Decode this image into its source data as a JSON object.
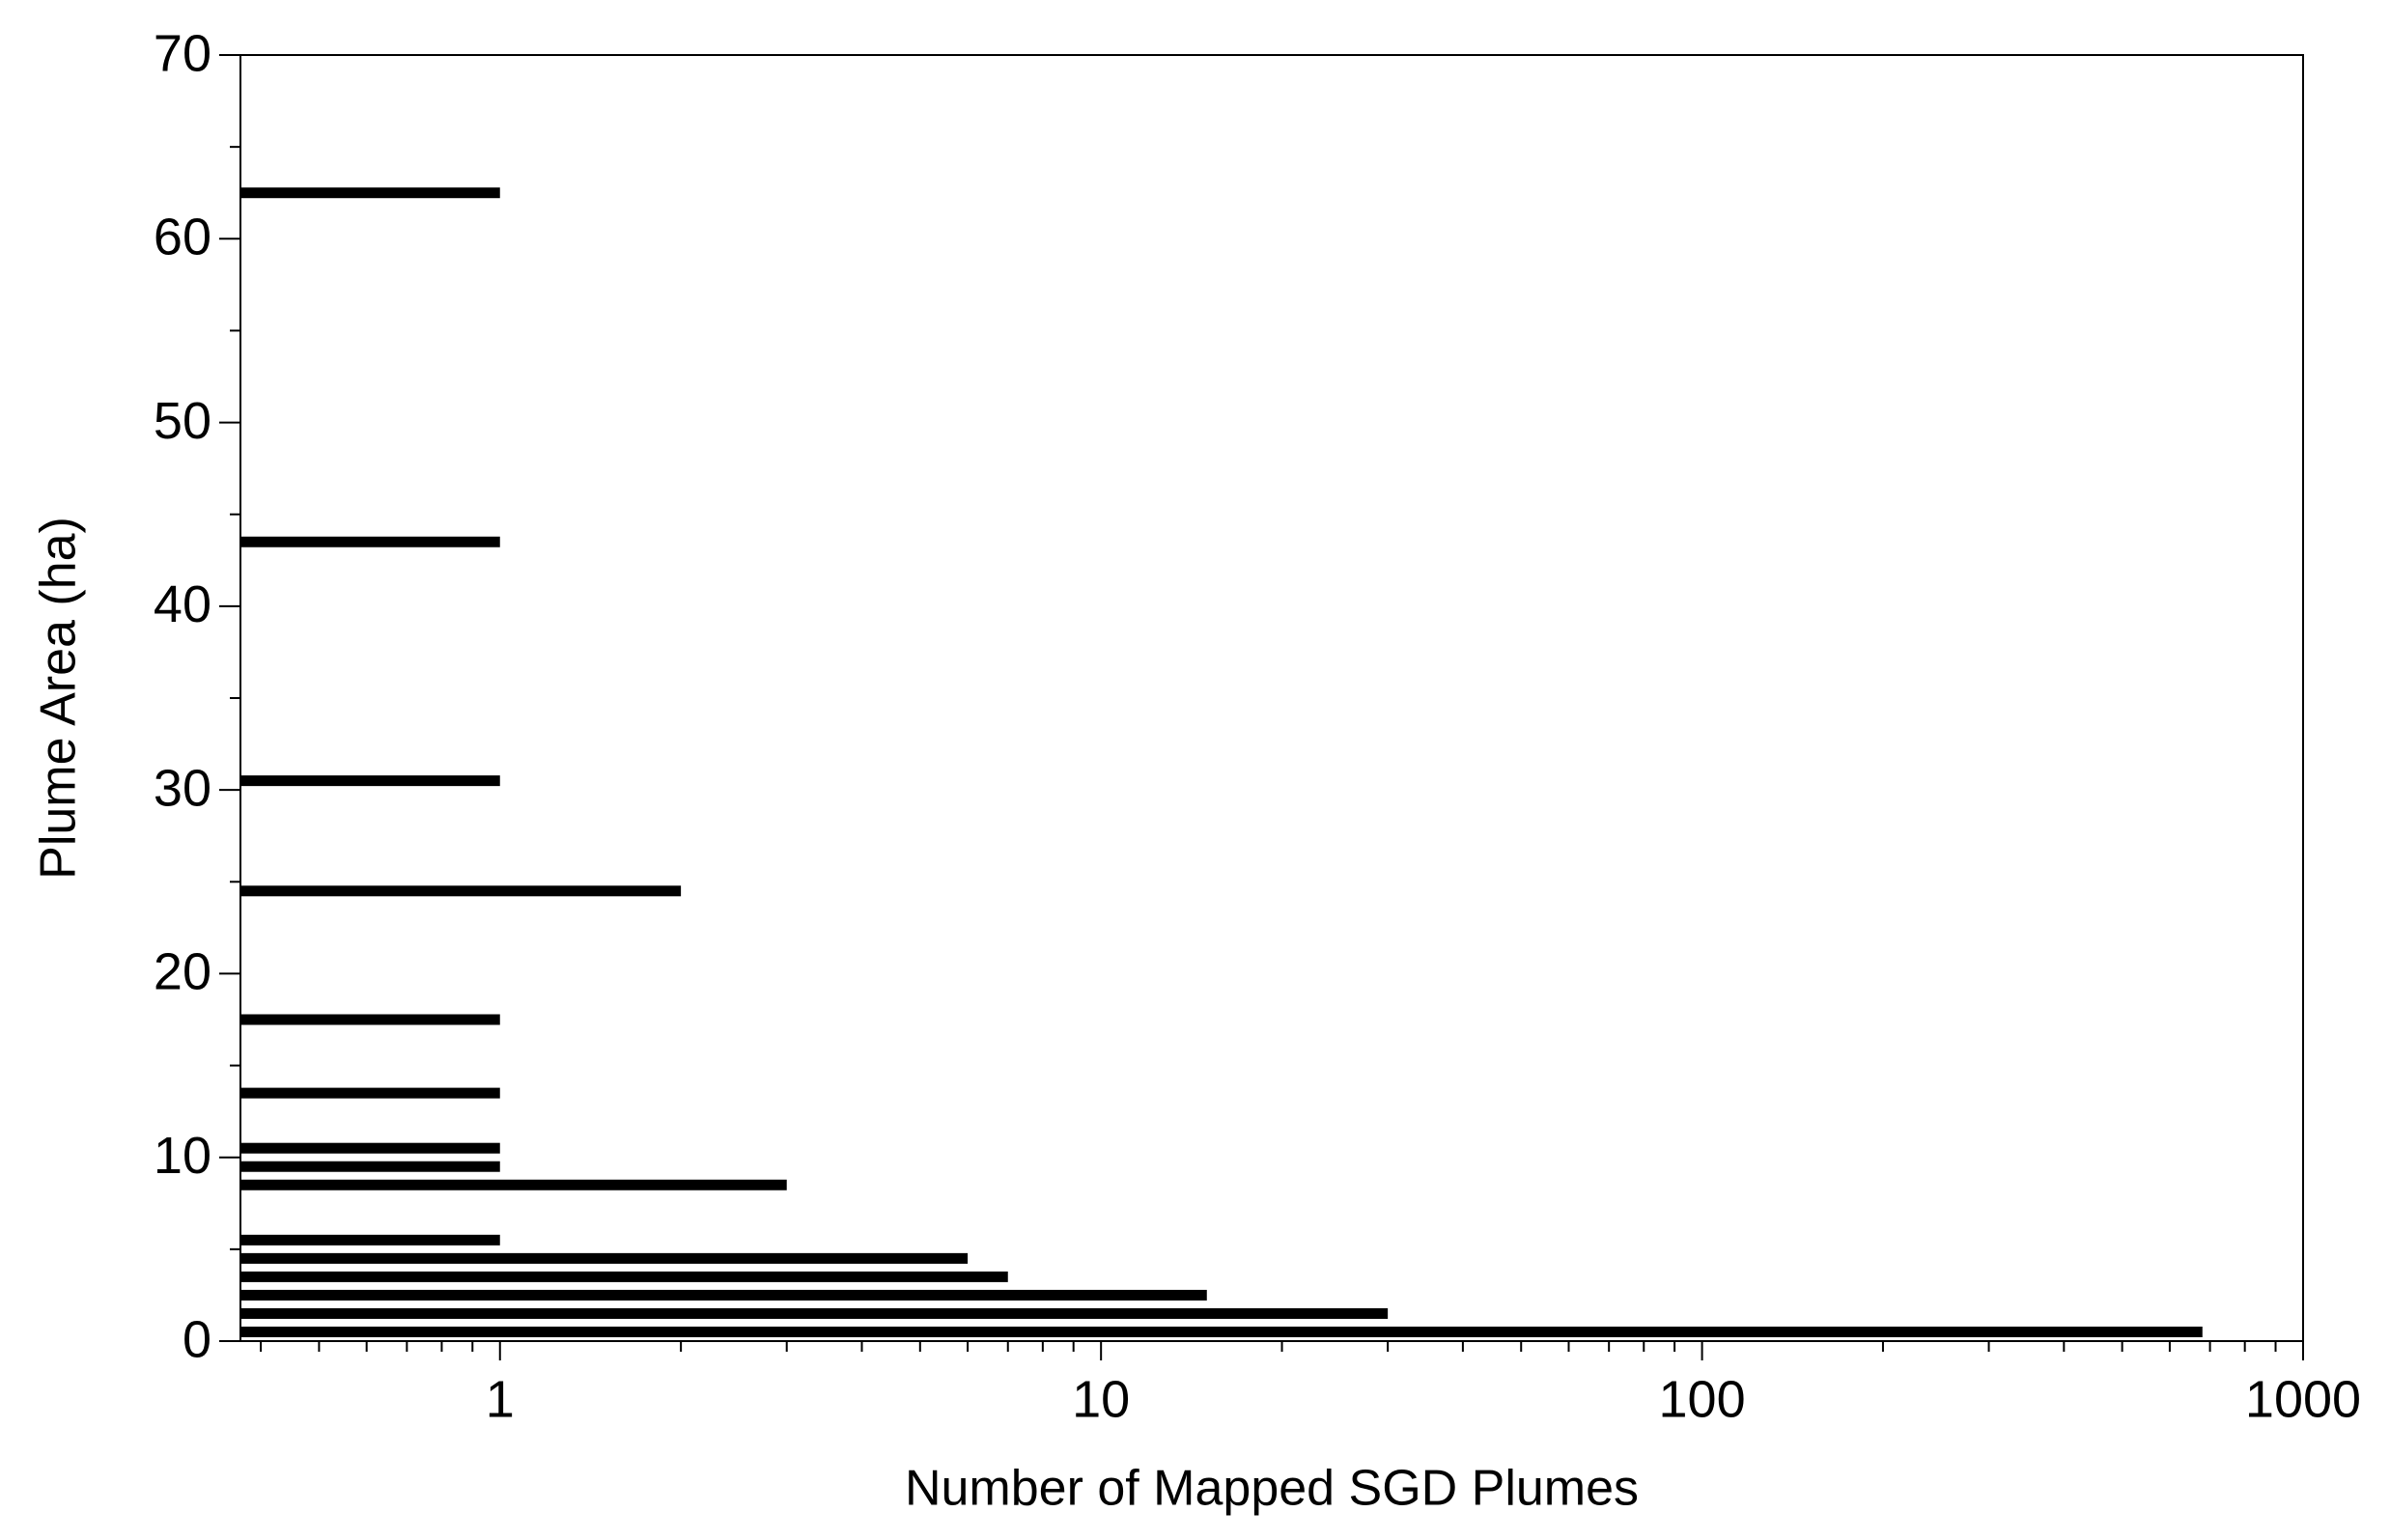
{
  "chart_data": {
    "type": "bar",
    "orientation": "horizontal",
    "x_label": "Number of Mapped SGD Plumes",
    "y_label": "Plume Area (ha)",
    "y": [
      0.5,
      1.5,
      2.5,
      3.5,
      4.5,
      5.5,
      8.5,
      9.5,
      10.5,
      13.5,
      17.5,
      24.5,
      30.5,
      43.5,
      62.5
    ],
    "values": [
      680,
      30,
      15,
      7,
      6,
      1,
      3,
      1,
      1,
      1,
      1,
      2,
      1,
      1,
      1
    ],
    "color": "#000000",
    "xscale": "log",
    "xlim": [
      0.37,
      1000
    ],
    "xticks": [
      1,
      10,
      100,
      1000
    ],
    "xminorticks": [
      0.4,
      0.5,
      0.6,
      0.7,
      0.8,
      0.9,
      2,
      3,
      4,
      5,
      6,
      7,
      8,
      9,
      20,
      30,
      40,
      50,
      60,
      70,
      80,
      90,
      200,
      300,
      400,
      500,
      600,
      700,
      800,
      900
    ],
    "ylim": [
      0,
      70
    ],
    "yticks": [
      0,
      10,
      20,
      30,
      40,
      50,
      60,
      70
    ],
    "yminorticks": [
      5,
      15,
      25,
      35,
      45,
      55,
      65
    ],
    "grid": false
  }
}
